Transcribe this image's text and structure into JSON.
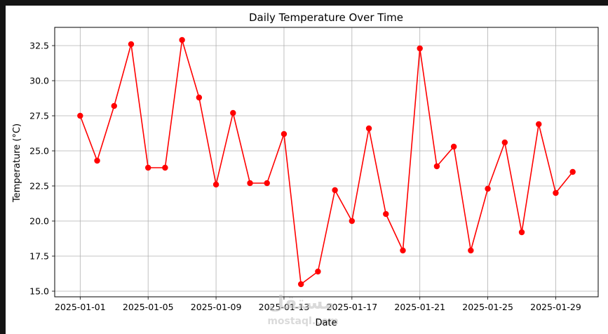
{
  "chart_data": {
    "type": "line",
    "title": "Daily Temperature Over Time",
    "xlabel": "Date",
    "ylabel": "Temperature (°C)",
    "x": [
      "2025-01-01",
      "2025-01-02",
      "2025-01-03",
      "2025-01-04",
      "2025-01-05",
      "2025-01-06",
      "2025-01-07",
      "2025-01-08",
      "2025-01-09",
      "2025-01-10",
      "2025-01-11",
      "2025-01-12",
      "2025-01-13",
      "2025-01-14",
      "2025-01-15",
      "2025-01-16",
      "2025-01-17",
      "2025-01-18",
      "2025-01-19",
      "2025-01-20",
      "2025-01-21",
      "2025-01-22",
      "2025-01-23",
      "2025-01-24",
      "2025-01-25",
      "2025-01-26",
      "2025-01-27",
      "2025-01-28",
      "2025-01-29",
      "2025-01-30"
    ],
    "series": [
      {
        "values": [
          27.5,
          24.3,
          28.2,
          32.6,
          23.8,
          23.8,
          32.9,
          28.8,
          22.6,
          27.7,
          22.7,
          22.7,
          26.2,
          15.5,
          16.4,
          22.2,
          20.0,
          26.6,
          20.5,
          17.9,
          32.3,
          23.9,
          25.3,
          17.9,
          22.3,
          25.6,
          19.2,
          26.9,
          22.0,
          23.5
        ],
        "color": "#ff0000",
        "marker": "circle"
      }
    ],
    "xticks": [
      "2025-01-01",
      "2025-01-05",
      "2025-01-09",
      "2025-01-13",
      "2025-01-17",
      "2025-01-21",
      "2025-01-25",
      "2025-01-29"
    ],
    "yticks": [
      "15.0",
      "17.5",
      "20.0",
      "22.5",
      "25.0",
      "27.5",
      "30.0",
      "32.5"
    ],
    "ylim": [
      14.6,
      33.8
    ],
    "xlim": [
      "2024-12-30T12:00",
      "2025-01-31T12:00"
    ],
    "grid": true
  },
  "watermark": {
    "text": "مستقل",
    "subtext": "mostaql.com"
  }
}
